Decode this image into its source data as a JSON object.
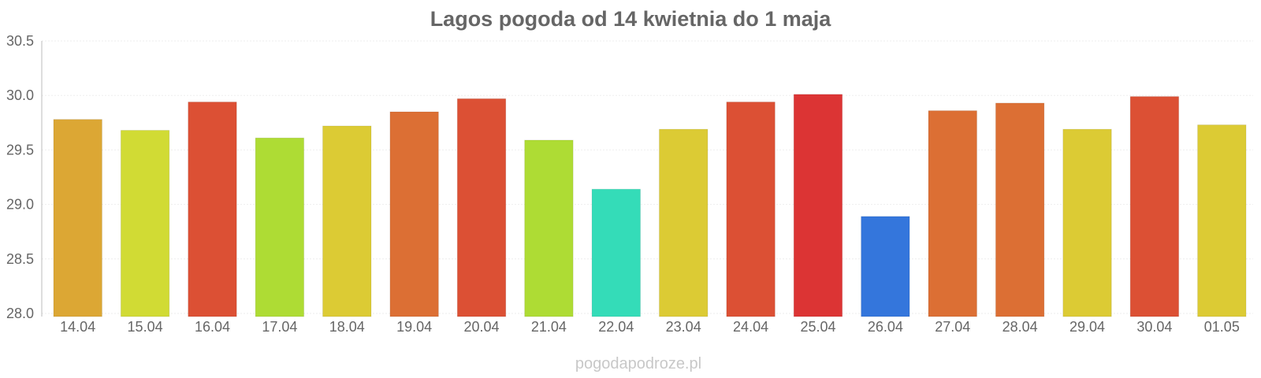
{
  "chart_data": {
    "type": "bar",
    "title": "Lagos pogoda od 14 kwietnia do 1 maja",
    "xlabel": "",
    "ylabel": "",
    "ylim": [
      28.0,
      30.5
    ],
    "yticks": [
      "28.0",
      "28.5",
      "29.0",
      "29.5",
      "30.0",
      "30.5"
    ],
    "grid": true,
    "legend": "none",
    "categories": [
      "14.04",
      "15.04",
      "16.04",
      "17.04",
      "18.04",
      "19.04",
      "20.04",
      "21.04",
      "22.04",
      "23.04",
      "24.04",
      "25.04",
      "26.04",
      "27.04",
      "28.04",
      "29.04",
      "30.04",
      "01.05"
    ],
    "values": [
      29.78,
      29.68,
      29.94,
      29.61,
      29.72,
      29.85,
      29.97,
      29.59,
      29.14,
      29.69,
      29.94,
      30.01,
      28.89,
      29.86,
      29.93,
      29.69,
      29.99,
      29.73
    ],
    "colors": [
      "#dca734",
      "#d1db34",
      "#dc5034",
      "#aedc34",
      "#dccb34",
      "#dc6f34",
      "#dc5034",
      "#aedc34",
      "#34dcb8",
      "#dccb34",
      "#dc5034",
      "#dc3434",
      "#3476dc",
      "#dc6f34",
      "#dc6f34",
      "#dccb34",
      "#dc5034",
      "#dccb34"
    ]
  },
  "watermark": "pogodapodroze.pl"
}
